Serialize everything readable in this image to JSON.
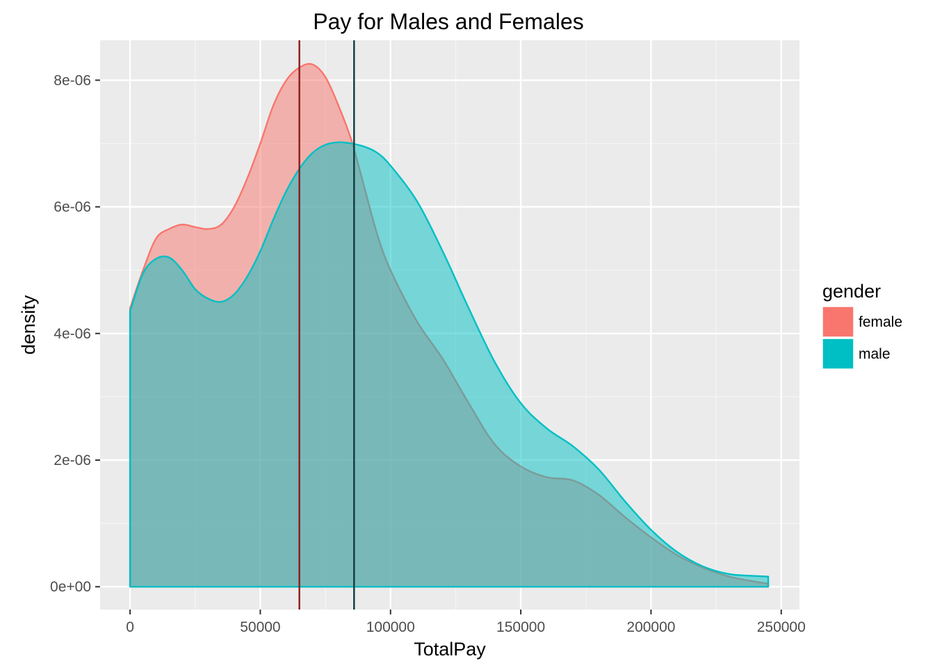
{
  "chart_data": {
    "type": "area",
    "title": "Pay for Males and Females",
    "xlabel": "TotalPay",
    "ylabel": "density",
    "xlim": [
      -11500,
      257000
    ],
    "ylim": [
      -3.6e-07,
      8.63e-06
    ],
    "x_ticks": [
      0,
      50000,
      100000,
      150000,
      200000,
      250000
    ],
    "x_tick_labels": [
      "0",
      "50000",
      "100000",
      "150000",
      "200000",
      "250000"
    ],
    "y_ticks": [
      0,
      2e-06,
      4e-06,
      6e-06,
      8e-06
    ],
    "y_tick_labels": [
      "0e+00",
      "2e-06",
      "4e-06",
      "6e-06",
      "8e-06"
    ],
    "grid": true,
    "legend": {
      "title": "gender",
      "placement": "right",
      "entries": [
        {
          "label": "female",
          "color": "#F8766D"
        },
        {
          "label": "male",
          "color": "#00BFC4"
        }
      ]
    },
    "series": [
      {
        "name": "female",
        "color": "#F8766D",
        "fill_opacity": 0.5,
        "x": [
          0,
          5000,
          10000,
          15000,
          20000,
          25000,
          30000,
          35000,
          40000,
          45000,
          50000,
          55000,
          60000,
          65000,
          70000,
          75000,
          80000,
          85000,
          90000,
          95000,
          100000,
          110000,
          120000,
          130000,
          140000,
          150000,
          160000,
          170000,
          180000,
          190000,
          200000,
          210000,
          220000,
          230000,
          240000,
          245000
        ],
        "y": [
          4.4e-06,
          5e-06,
          5.5e-06,
          5.65e-06,
          5.72e-06,
          5.68e-06,
          5.65e-06,
          5.72e-06,
          6e-06,
          6.45e-06,
          7e-06,
          7.6e-06,
          8e-06,
          8.2e-06,
          8.25e-06,
          8.05e-06,
          7.6e-06,
          7.05e-06,
          6.3e-06,
          5.55e-06,
          5e-06,
          4.2e-06,
          3.6e-06,
          2.9e-06,
          2.25e-06,
          1.9e-06,
          1.73e-06,
          1.68e-06,
          1.45e-06,
          1.1e-06,
          7.8e-07,
          5e-07,
          3e-07,
          1.6e-07,
          8e-08,
          5e-08
        ]
      },
      {
        "name": "male",
        "color": "#00BFC4",
        "fill_opacity": 0.5,
        "x": [
          0,
          5000,
          10000,
          15000,
          20000,
          25000,
          30000,
          35000,
          40000,
          45000,
          50000,
          55000,
          60000,
          65000,
          70000,
          75000,
          80000,
          85000,
          90000,
          95000,
          100000,
          110000,
          120000,
          130000,
          140000,
          150000,
          160000,
          170000,
          180000,
          190000,
          200000,
          210000,
          220000,
          230000,
          240000,
          245000
        ],
        "y": [
          4.35e-06,
          4.95e-06,
          5.18e-06,
          5.2e-06,
          5e-06,
          4.7e-06,
          4.55e-06,
          4.5e-06,
          4.62e-06,
          4.9e-06,
          5.3e-06,
          5.8e-06,
          6.25e-06,
          6.6e-06,
          6.85e-06,
          6.98e-06,
          7.02e-06,
          7e-06,
          6.95e-06,
          6.85e-06,
          6.65e-06,
          6.1e-06,
          5.3e-06,
          4.4e-06,
          3.55e-06,
          2.9e-06,
          2.5e-06,
          2.22e-06,
          1.85e-06,
          1.35e-06,
          9e-07,
          5.5e-07,
          3.2e-07,
          2e-07,
          1.7e-07,
          1.6e-07
        ]
      }
    ],
    "vlines": [
      {
        "name": "female mean",
        "x": 65000,
        "color": "#8B1A1A"
      },
      {
        "name": "male mean",
        "x": 86000,
        "color": "#0E3B3C"
      }
    ]
  }
}
